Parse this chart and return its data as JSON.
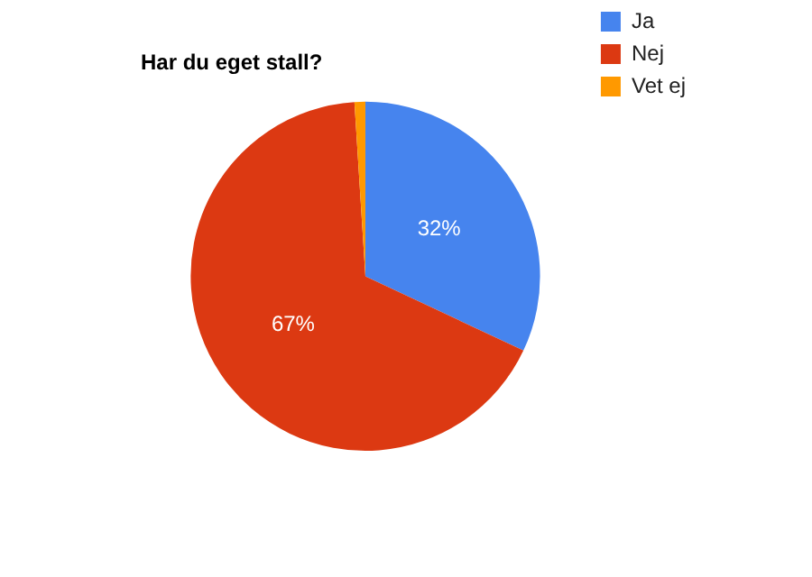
{
  "chart_data": {
    "type": "pie",
    "title": "Har du eget stall?",
    "categories": [
      "Ja",
      "Nej",
      "Vet ej"
    ],
    "values": [
      32,
      67,
      1
    ],
    "colors": [
      "#4684ee",
      "#dc3912",
      "#ff9900"
    ],
    "value_labels": [
      "32%",
      "67%",
      null
    ],
    "legend": "right"
  }
}
